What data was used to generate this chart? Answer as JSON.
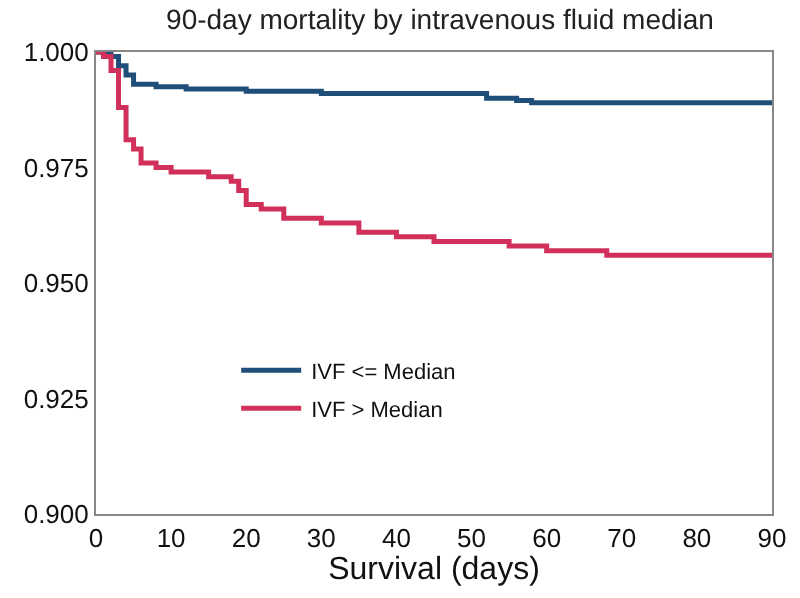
{
  "chart_data": {
    "type": "step",
    "title": "90-day mortality by intravenous fluid median",
    "xlabel": "Survival (days)",
    "xlim": [
      0,
      90
    ],
    "xticks": [
      0,
      10,
      20,
      30,
      40,
      50,
      60,
      70,
      80,
      90
    ],
    "ylim": [
      0.9,
      1.0
    ],
    "yticks": [
      {
        "value": 0.9,
        "label": "0.900"
      },
      {
        "value": 0.925,
        "label": "0.925"
      },
      {
        "value": 0.95,
        "label": "0.950"
      },
      {
        "value": 0.975,
        "label": "0.975"
      },
      {
        "value": 1.0,
        "label": "1.000"
      }
    ],
    "grid": false,
    "legend": "left",
    "marker": "none",
    "line_style": "solid",
    "series": [
      {
        "name": "IVF <= Median",
        "color": "#1f4e79",
        "x": [
          0,
          2,
          3,
          4,
          5,
          8,
          12,
          20,
          30,
          45,
          52,
          56,
          58,
          90
        ],
        "values": [
          1.0,
          0.999,
          0.997,
          0.995,
          0.993,
          0.9925,
          0.992,
          0.9915,
          0.991,
          0.991,
          0.99,
          0.9895,
          0.989,
          0.989
        ]
      },
      {
        "name": "IVF > Median",
        "color": "#d0305a",
        "x": [
          0,
          1,
          2,
          3,
          4,
          5,
          6,
          8,
          10,
          15,
          18,
          19,
          20,
          22,
          25,
          30,
          35,
          40,
          45,
          50,
          55,
          60,
          65,
          68,
          90
        ],
        "values": [
          1.0,
          0.999,
          0.996,
          0.988,
          0.981,
          0.979,
          0.976,
          0.975,
          0.974,
          0.973,
          0.972,
          0.97,
          0.967,
          0.966,
          0.964,
          0.963,
          0.961,
          0.96,
          0.959,
          0.959,
          0.958,
          0.957,
          0.957,
          0.956,
          0.956
        ]
      }
    ]
  }
}
